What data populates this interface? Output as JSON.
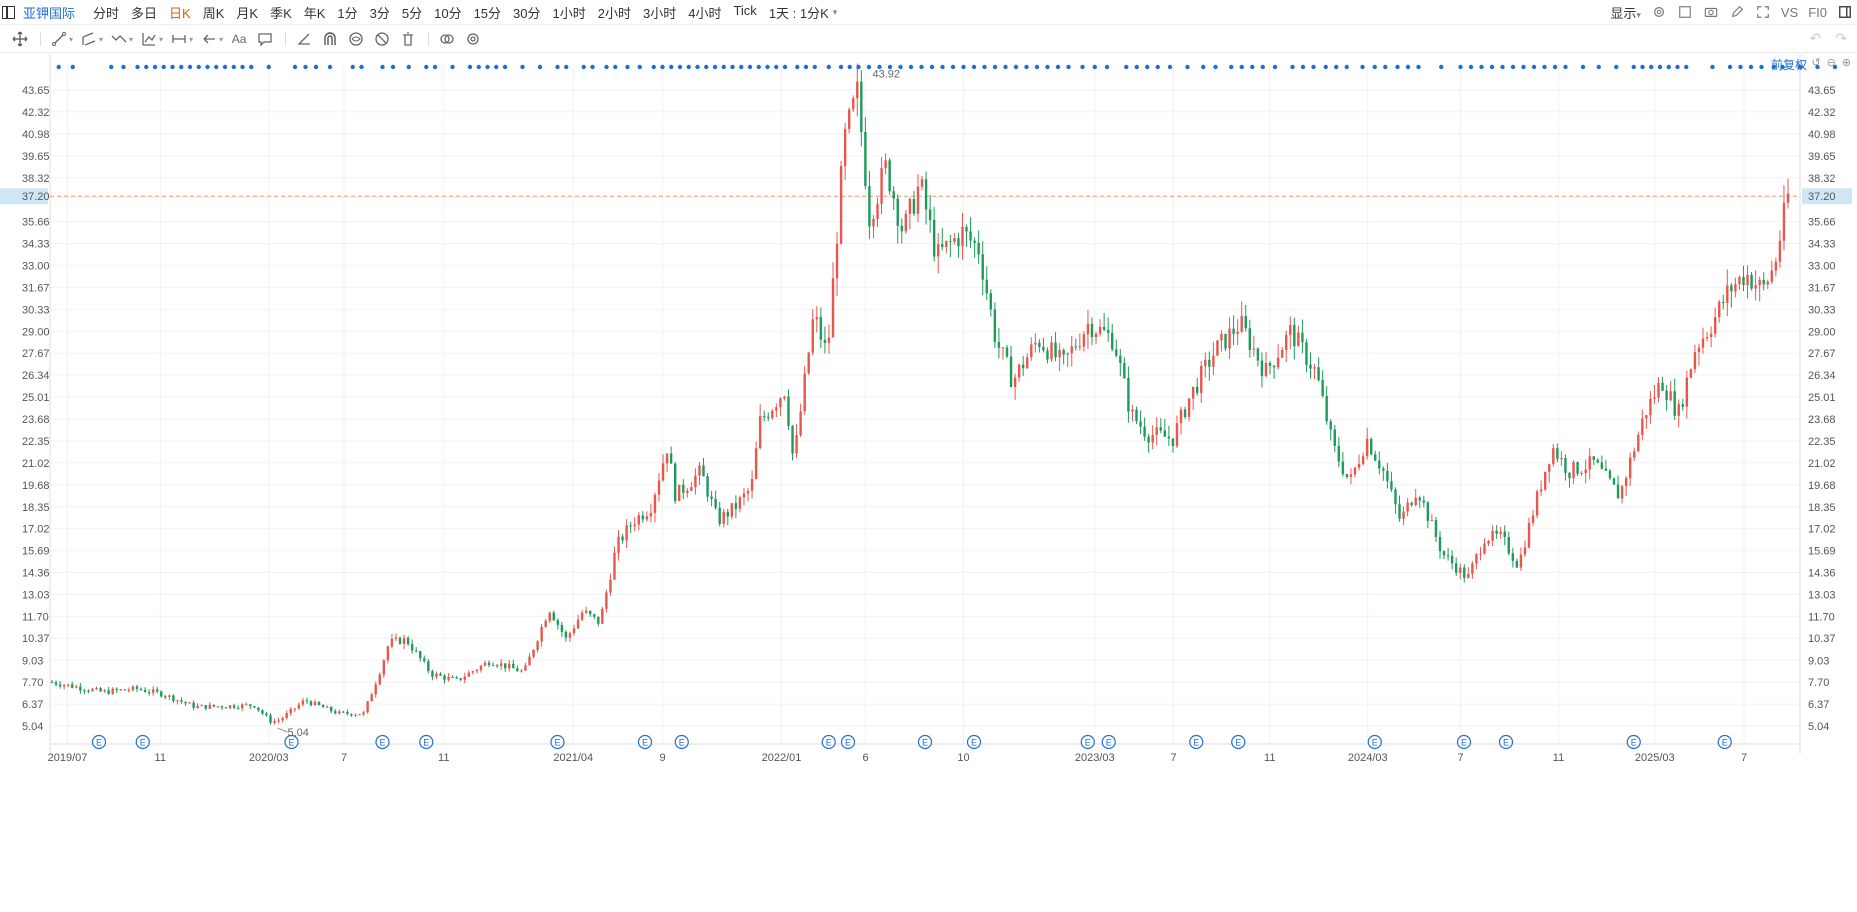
{
  "app": {
    "symbol_name": "亚钾国际",
    "periods": [
      "分时",
      "多日",
      "日K",
      "周K",
      "月K",
      "季K",
      "年K",
      "1分",
      "3分",
      "5分",
      "10分",
      "15分",
      "30分",
      "1小时",
      "2小时",
      "3小时",
      "4小时",
      "Tick"
    ],
    "active_period": "日K",
    "period_selector": "1天 : 1分K",
    "display_label": "显示",
    "compare_label": "VS",
    "f10_label": "FI0",
    "adjust_label": "前复权"
  },
  "drawing_tools": [
    "move-tool-icon",
    "line-tool-icon",
    "channel-tool-icon",
    "polyline-tool-icon",
    "pattern-tool-icon",
    "measure-tool-icon",
    "arrow-tool-icon",
    "text-tool-icon",
    "comment-tool-icon",
    "angle-tool-icon",
    "magnet-tool-icon",
    "hide-drawings-icon",
    "lock-drawings-icon",
    "delete-drawings-icon",
    "overlay-icon",
    "settings-icon"
  ],
  "colors": {
    "up": "#e8574d",
    "down": "#1c9b5a",
    "accent": "#1f6fd1",
    "price_line": "#f39a6b",
    "current_badge": "#cfe7f5"
  },
  "chart_data": {
    "type": "candlestick",
    "y_axis_ticks": [
      "43.65",
      "42.32",
      "40.98",
      "39.65",
      "38.32",
      "37.20",
      "35.66",
      "34.33",
      "33.00",
      "31.67",
      "30.33",
      "29.00",
      "27.67",
      "26.34",
      "25.01",
      "23.68",
      "22.35",
      "21.02",
      "19.68",
      "18.35",
      "17.02",
      "15.69",
      "14.36",
      "13.03",
      "11.70",
      "10.37",
      "9.03",
      "7.70",
      "6.37",
      "5.04"
    ],
    "ylim": [
      4.0,
      45.0
    ],
    "current_price": "37.20",
    "max_label": "43.92",
    "min_label": "5.04",
    "x_axis_ticks": [
      {
        "label": "2019/07",
        "t": 0.01
      },
      {
        "label": "11",
        "t": 0.063
      },
      {
        "label": "2020/03",
        "t": 0.125
      },
      {
        "label": "7",
        "t": 0.168
      },
      {
        "label": "11",
        "t": 0.225
      },
      {
        "label": "2021/04",
        "t": 0.299
      },
      {
        "label": "9",
        "t": 0.35
      },
      {
        "label": "2022/01",
        "t": 0.418
      },
      {
        "label": "6",
        "t": 0.466
      },
      {
        "label": "10",
        "t": 0.522
      },
      {
        "label": "2023/03",
        "t": 0.597
      },
      {
        "label": "7",
        "t": 0.642
      },
      {
        "label": "11",
        "t": 0.697
      },
      {
        "label": "2024/03",
        "t": 0.753
      },
      {
        "label": "7",
        "t": 0.806
      },
      {
        "label": "11",
        "t": 0.862
      },
      {
        "label": "2025/03",
        "t": 0.917
      },
      {
        "label": "7",
        "t": 0.968
      }
    ],
    "anchors": [
      [
        0.0,
        7.7
      ],
      [
        0.03,
        7.1
      ],
      [
        0.05,
        7.3
      ],
      [
        0.065,
        7.0
      ],
      [
        0.085,
        6.2
      ],
      [
        0.12,
        6.3
      ],
      [
        0.13,
        5.3
      ],
      [
        0.135,
        5.4
      ],
      [
        0.15,
        6.6
      ],
      [
        0.17,
        5.8
      ],
      [
        0.185,
        5.8
      ],
      [
        0.195,
        8.5
      ],
      [
        0.2,
        10.1
      ],
      [
        0.21,
        10.3
      ],
      [
        0.225,
        8.2
      ],
      [
        0.24,
        7.8
      ],
      [
        0.26,
        9.0
      ],
      [
        0.28,
        8.3
      ],
      [
        0.295,
        12.2
      ],
      [
        0.305,
        10.3
      ],
      [
        0.315,
        12.0
      ],
      [
        0.325,
        11.3
      ],
      [
        0.335,
        16.0
      ],
      [
        0.345,
        17.5
      ],
      [
        0.355,
        18.3
      ],
      [
        0.365,
        22.0
      ],
      [
        0.37,
        19.0
      ],
      [
        0.385,
        20.5
      ],
      [
        0.395,
        17.5
      ],
      [
        0.405,
        18.3
      ],
      [
        0.415,
        19.5
      ],
      [
        0.42,
        23.5
      ],
      [
        0.435,
        25.5
      ],
      [
        0.44,
        21.0
      ],
      [
        0.452,
        30.0
      ],
      [
        0.46,
        27.5
      ],
      [
        0.47,
        40.5
      ],
      [
        0.478,
        43.5
      ],
      [
        0.485,
        36.0
      ],
      [
        0.495,
        39.0
      ],
      [
        0.505,
        35.0
      ],
      [
        0.515,
        38.0
      ],
      [
        0.525,
        33.5
      ],
      [
        0.54,
        35.0
      ],
      [
        0.55,
        34.0
      ],
      [
        0.56,
        28.5
      ],
      [
        0.57,
        26.0
      ],
      [
        0.585,
        28.5
      ],
      [
        0.6,
        27.0
      ],
      [
        0.615,
        29.5
      ],
      [
        0.63,
        28.5
      ],
      [
        0.64,
        24.0
      ],
      [
        0.65,
        22.8
      ],
      [
        0.665,
        22.5
      ],
      [
        0.675,
        25.0
      ],
      [
        0.69,
        27.8
      ],
      [
        0.705,
        29.5
      ],
      [
        0.72,
        26.5
      ],
      [
        0.735,
        29.0
      ],
      [
        0.75,
        26.5
      ],
      [
        0.76,
        22.0
      ],
      [
        0.77,
        19.8
      ],
      [
        0.78,
        22.5
      ],
      [
        0.79,
        20.5
      ],
      [
        0.8,
        17.5
      ],
      [
        0.81,
        19.5
      ],
      [
        0.825,
        15.5
      ],
      [
        0.84,
        14.0
      ],
      [
        0.85,
        16.5
      ],
      [
        0.86,
        16.5
      ],
      [
        0.87,
        14.8
      ],
      [
        0.88,
        18.5
      ],
      [
        0.89,
        22.0
      ],
      [
        0.9,
        20.5
      ],
      [
        0.915,
        21.0
      ],
      [
        0.93,
        19.0
      ],
      [
        0.945,
        24.0
      ],
      [
        0.955,
        26.0
      ],
      [
        0.965,
        24.0
      ],
      [
        0.975,
        28.0
      ],
      [
        0.985,
        29.5
      ],
      [
        0.995,
        31.5
      ],
      [
        1.005,
        32.5
      ],
      [
        1.015,
        31.5
      ],
      [
        1.022,
        33.0
      ],
      [
        1.03,
        37.2
      ]
    ],
    "event_markers_t": [
      0.028,
      0.053,
      0.138,
      0.19,
      0.215,
      0.29,
      0.34,
      0.361,
      0.445,
      0.456,
      0.5,
      0.528,
      0.593,
      0.605,
      0.655,
      0.679,
      0.757,
      0.808,
      0.832,
      0.905,
      0.957
    ],
    "event_label": "E",
    "dot_markers_t": [
      0.005,
      0.013,
      0.035,
      0.042,
      0.05,
      0.055,
      0.06,
      0.065,
      0.07,
      0.075,
      0.08,
      0.085,
      0.09,
      0.095,
      0.1,
      0.105,
      0.11,
      0.115,
      0.125,
      0.14,
      0.146,
      0.152,
      0.16,
      0.173,
      0.178,
      0.19,
      0.196,
      0.205,
      0.215,
      0.22,
      0.23,
      0.24,
      0.245,
      0.25,
      0.255,
      0.26,
      0.27,
      0.28,
      0.29,
      0.295,
      0.305,
      0.31,
      0.318,
      0.323,
      0.33,
      0.337,
      0.345,
      0.35,
      0.355,
      0.36,
      0.365,
      0.37,
      0.375,
      0.38,
      0.385,
      0.39,
      0.395,
      0.4,
      0.405,
      0.41,
      0.415,
      0.42,
      0.427,
      0.432,
      0.437,
      0.445,
      0.452,
      0.457,
      0.462,
      0.468,
      0.474,
      0.48,
      0.486,
      0.492,
      0.498,
      0.504,
      0.51,
      0.516,
      0.522,
      0.528,
      0.534,
      0.54,
      0.546,
      0.552,
      0.558,
      0.564,
      0.57,
      0.576,
      0.582,
      0.59,
      0.597,
      0.604,
      0.615,
      0.621,
      0.627,
      0.633,
      0.64,
      0.65,
      0.659,
      0.666,
      0.675,
      0.681,
      0.687,
      0.693,
      0.7,
      0.71,
      0.716,
      0.722,
      0.729,
      0.735,
      0.741,
      0.75,
      0.757,
      0.763,
      0.77,
      0.776,
      0.782,
      0.795,
      0.806,
      0.812,
      0.818,
      0.824,
      0.83,
      0.836,
      0.842,
      0.848,
      0.854,
      0.86,
      0.866,
      0.876,
      0.885,
      0.895,
      0.905,
      0.91,
      0.915,
      0.92,
      0.925,
      0.93,
      0.935,
      0.95,
      0.96,
      0.966,
      0.972,
      0.978,
      0.985,
      0.99,
      1.0,
      1.01,
      1.02
    ]
  }
}
